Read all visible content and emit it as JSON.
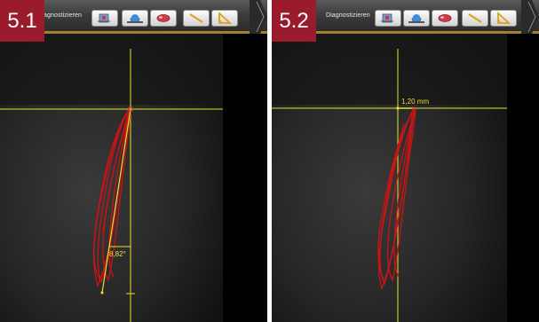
{
  "panels": [
    {
      "badge": "5.1",
      "toolbar_label": "agnostizieren",
      "measurement": {
        "type": "angle",
        "label": "8,82°"
      }
    },
    {
      "badge": "5.2",
      "toolbar_label": "Diagnostizieren",
      "measurement": {
        "type": "distance",
        "label": "1,20 mm"
      }
    }
  ],
  "toolbar_icons": [
    "scan-tool-icon",
    "rotate-view-icon",
    "implant-icon",
    "ruler-line-icon",
    "angle-tool-icon"
  ],
  "colors": {
    "badge": "#9a1b2c",
    "toolbar_accent": "#a57e2e",
    "measure_line": "#e6e22a",
    "tooth_outline": "#c81414",
    "background": "#050505"
  }
}
